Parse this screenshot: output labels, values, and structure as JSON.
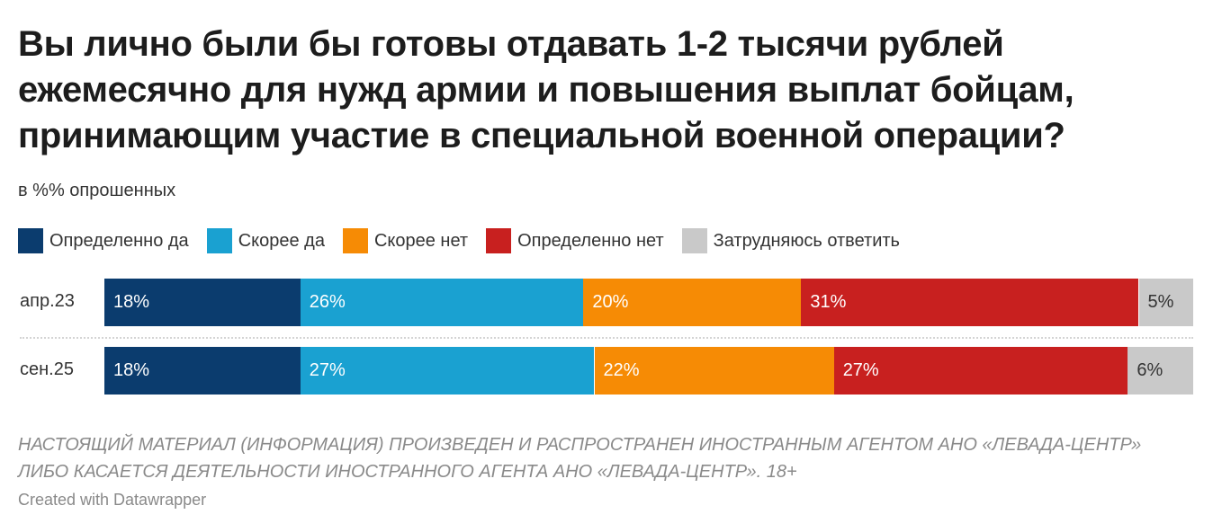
{
  "chart_data": {
    "type": "stacked-bar",
    "title": "Вы лично были бы готовы отдавать 1-2 тысячи рублей ежемесячно для нужд армии и повышения выплат бойцам, принимающим участие в специальной военной операции?",
    "subtitle": "в %% опрошенных",
    "categories": [
      "апр.23",
      "сен.25"
    ],
    "xlim": [
      0,
      100
    ],
    "series": [
      {
        "name": "Определенно да",
        "color": "#0b3c6e",
        "values": [
          18,
          18
        ],
        "value_labels": [
          "18%",
          "18%"
        ]
      },
      {
        "name": "Скорее да",
        "color": "#1aa1d1",
        "values": [
          26,
          27
        ],
        "value_labels": [
          "26%",
          "27%"
        ]
      },
      {
        "name": "Скорее нет",
        "color": "#f68b05",
        "values": [
          20,
          22
        ],
        "value_labels": [
          "20%",
          "22%"
        ]
      },
      {
        "name": "Определенно нет",
        "color": "#c8201f",
        "values": [
          31,
          27
        ],
        "value_labels": [
          "31%",
          "27%"
        ]
      },
      {
        "name": "Затрудняюсь ответить",
        "color": "#c9c9c9",
        "values": [
          5,
          6
        ],
        "value_labels": [
          "5%",
          "6%"
        ]
      }
    ],
    "notes": "НАСТОЯЩИЙ МАТЕРИАЛ (ИНФОРМАЦИЯ) ПРОИЗВЕДЕН И РАСПРОСТРАНЕН ИНОСТРАННЫМ АГЕНТОМ АНО «ЛЕВАДА-ЦЕНТР» ЛИБО КАСАЕТСЯ ДЕЯТЕЛЬНОСТИ ИНОСТРАННОГО АГЕНТА АНО «ЛЕВАДА-ЦЕНТР». 18+",
    "credit": "Created with Datawrapper"
  }
}
